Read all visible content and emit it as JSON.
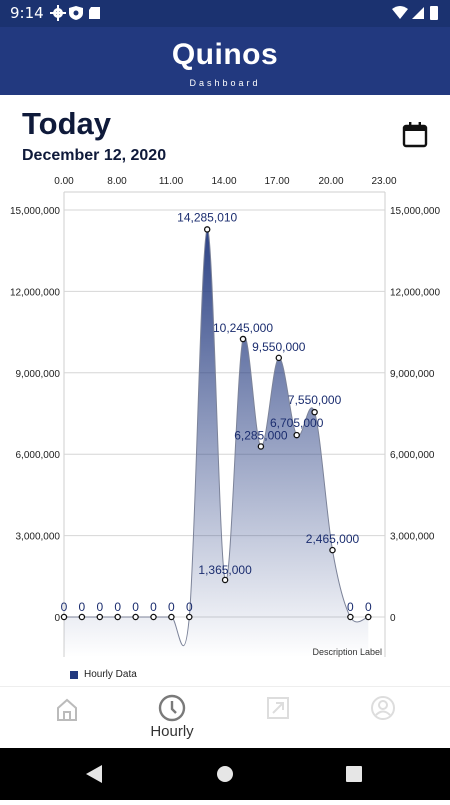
{
  "status": {
    "time": "9:14"
  },
  "app": {
    "title": "Quinos",
    "subtitle": "Dashboard"
  },
  "page": {
    "title": "Today",
    "date": "December 12, 2020"
  },
  "icons": {
    "calendar": "calendar-icon",
    "home": "home-icon",
    "hourly": "clock-icon",
    "export": "export-icon",
    "account": "account-icon"
  },
  "colors": {
    "primary": "#22397f",
    "status_bar": "#1b3270",
    "accent_text": "#1b2d6f"
  },
  "chart_data": {
    "type": "area",
    "x_top_ticks": [
      "0.00",
      "8.00",
      "11.00",
      "14.00",
      "17.00",
      "20.00",
      "23.00"
    ],
    "y_ticks": [
      "0",
      "3,000,000",
      "6,000,000",
      "9,000,000",
      "12,000,000",
      "15,000,000"
    ],
    "ylim": [
      0,
      15000000
    ],
    "grid": true,
    "description": "Description Label",
    "series": [
      {
        "name": "Hourly Data",
        "values": [
          0,
          0,
          0,
          0,
          0,
          0,
          0,
          0,
          14285010,
          1365000,
          10245000,
          6285000,
          9550000,
          6705000,
          7550000,
          2465000,
          0,
          0
        ],
        "labels": [
          "0",
          "0",
          "0",
          "0",
          "0",
          "0",
          "0",
          "0",
          "14,285,010",
          "1,365,000",
          "10,245,000",
          "6,285,000",
          "9,550,000",
          "6,705,000",
          "7,550,000",
          "2,465,000",
          "0",
          "0"
        ]
      }
    ],
    "legend": "bottom-left"
  },
  "nav": {
    "active": "Hourly",
    "items": [
      {
        "key": "home",
        "label": ""
      },
      {
        "key": "hourly",
        "label": "Hourly"
      },
      {
        "key": "export",
        "label": ""
      },
      {
        "key": "account",
        "label": ""
      }
    ]
  }
}
